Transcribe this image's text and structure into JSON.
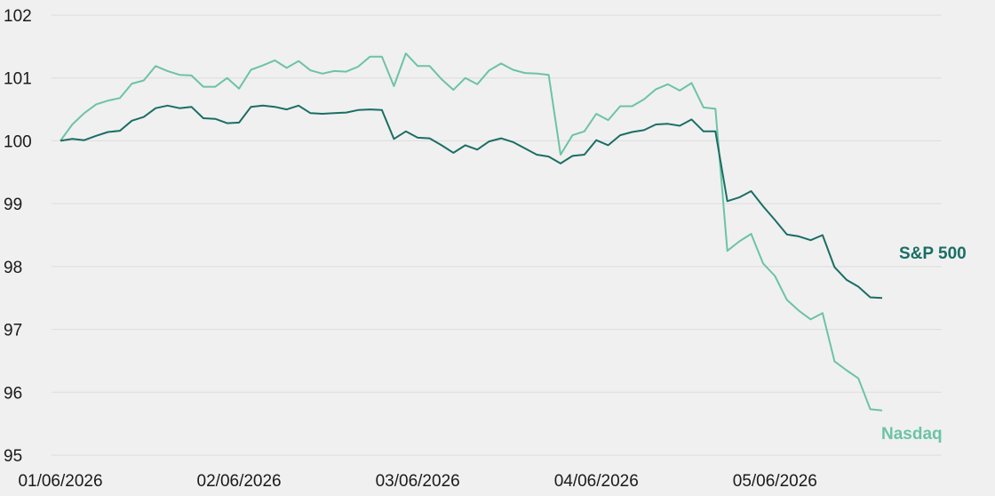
{
  "chart_data": {
    "type": "line",
    "title": "",
    "xlabel": "",
    "ylabel": "",
    "ylim": [
      95,
      102
    ],
    "yticks": [
      95,
      96,
      97,
      98,
      99,
      100,
      101,
      102
    ],
    "xticks": [
      "01/06/2026",
      "02/06/2026",
      "03/06/2026",
      "04/06/2026",
      "05/06/2026"
    ],
    "xtick_positions": [
      0,
      15,
      30,
      45,
      60
    ],
    "x_count": 75,
    "grid": true,
    "legend": "direct labels at right end of lines",
    "colors": {
      "sp500": "#1a6e64",
      "nasdaq": "#6cc3a6"
    },
    "series": [
      {
        "name": "S&P 500",
        "color": "#1a6e64",
        "values": [
          100.0,
          100.03,
          100.01,
          100.08,
          100.14,
          100.16,
          100.32,
          100.38,
          100.52,
          100.56,
          100.52,
          100.54,
          100.36,
          100.35,
          100.28,
          100.29,
          100.54,
          100.56,
          100.54,
          100.5,
          100.56,
          100.44,
          100.43,
          100.44,
          100.45,
          100.49,
          100.5,
          100.49,
          100.03,
          100.15,
          100.05,
          100.04,
          99.93,
          99.81,
          99.93,
          99.86,
          99.99,
          100.04,
          99.98,
          99.88,
          99.78,
          99.75,
          99.64,
          99.76,
          99.78,
          100.01,
          99.93,
          100.09,
          100.14,
          100.17,
          100.26,
          100.27,
          100.24,
          100.34,
          100.15,
          100.15,
          99.04,
          99.1,
          99.2,
          98.96,
          98.74,
          98.51,
          98.48,
          98.42,
          98.5,
          97.99,
          97.79,
          97.68,
          97.51,
          97.5
        ]
      },
      {
        "name": "Nasdaq",
        "color": "#6cc3a6",
        "values": [
          100.0,
          100.26,
          100.44,
          100.58,
          100.64,
          100.68,
          100.91,
          100.96,
          101.19,
          101.11,
          101.05,
          101.04,
          100.86,
          100.86,
          101.0,
          100.83,
          101.13,
          101.2,
          101.28,
          101.16,
          101.27,
          101.12,
          101.07,
          101.11,
          101.1,
          101.18,
          101.34,
          101.34,
          100.87,
          101.39,
          101.19,
          101.19,
          100.98,
          100.81,
          101.0,
          100.9,
          101.12,
          101.23,
          101.13,
          101.08,
          101.07,
          101.05,
          99.78,
          100.09,
          100.15,
          100.43,
          100.33,
          100.55,
          100.55,
          100.66,
          100.82,
          100.9,
          100.8,
          100.92,
          100.53,
          100.51,
          98.25,
          98.4,
          98.52,
          98.05,
          97.85,
          97.47,
          97.3,
          97.16,
          97.26,
          96.49,
          96.35,
          96.22,
          95.73,
          95.71
        ]
      }
    ]
  }
}
